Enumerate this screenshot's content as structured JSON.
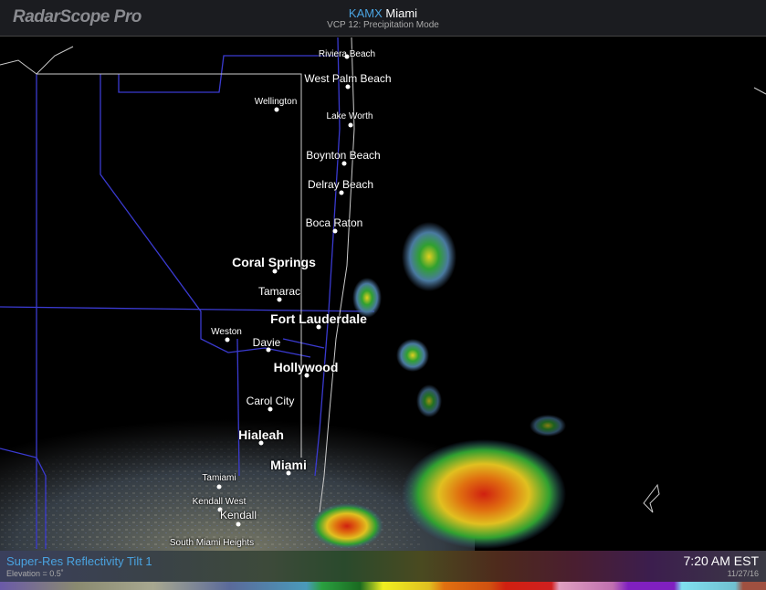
{
  "app": {
    "title": "RadarScope Pro"
  },
  "header": {
    "station_id": "KAMX",
    "station_name": "Miami",
    "vcp": "VCP 12: Precipitation Mode"
  },
  "footer": {
    "product": "Super-Res Reflectivity Tilt 1",
    "elevation": "Elevation = 0.5˚",
    "time": "7:20 AM EST",
    "date": "11/27/16"
  },
  "colors": {
    "accent": "#4aa3e0",
    "county_lines": "#3a3ad0"
  },
  "cities": [
    {
      "name": "Riviera Beach",
      "size": "s"
    },
    {
      "name": "West Palm Beach",
      "size": "m"
    },
    {
      "name": "Wellington",
      "size": "s"
    },
    {
      "name": "Lake Worth",
      "size": "s"
    },
    {
      "name": "Boynton Beach",
      "size": "m"
    },
    {
      "name": "Delray Beach",
      "size": "m"
    },
    {
      "name": "Boca Raton",
      "size": "m"
    },
    {
      "name": "Coral Springs",
      "size": "l"
    },
    {
      "name": "Tamarac",
      "size": "m"
    },
    {
      "name": "Fort Lauderdale",
      "size": "l"
    },
    {
      "name": "Weston",
      "size": "s"
    },
    {
      "name": "Davie",
      "size": "m"
    },
    {
      "name": "Hollywood",
      "size": "l"
    },
    {
      "name": "Carol City",
      "size": "m"
    },
    {
      "name": "Hialeah",
      "size": "l"
    },
    {
      "name": "Miami",
      "size": "l"
    },
    {
      "name": "Tamiami",
      "size": "s"
    },
    {
      "name": "Kendall West",
      "size": "s"
    },
    {
      "name": "Kendall",
      "size": "m"
    },
    {
      "name": "South Miami Heights",
      "size": "s"
    }
  ]
}
